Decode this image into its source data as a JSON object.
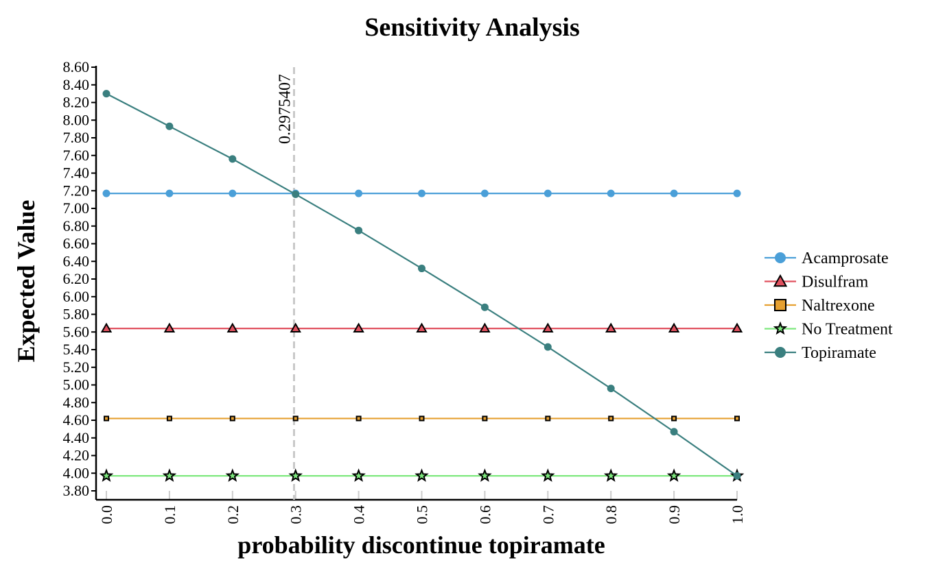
{
  "chart_data": {
    "type": "line",
    "title": "Sensitivity Analysis",
    "xlabel": "probability discontinue topiramate",
    "ylabel": "Expected Value",
    "xlim": [
      0.0,
      1.0
    ],
    "ylim": [
      3.8,
      8.6
    ],
    "x_ticks": [
      "0.0",
      "0.1",
      "0.2",
      "0.3",
      "0.4",
      "0.5",
      "0.6",
      "0.7",
      "0.8",
      "0.9",
      "1.0"
    ],
    "y_ticks": [
      "3.80",
      "4.00",
      "4.20",
      "4.40",
      "4.60",
      "4.80",
      "5.00",
      "5.20",
      "5.40",
      "5.60",
      "5.80",
      "6.00",
      "6.20",
      "6.40",
      "6.60",
      "6.80",
      "7.00",
      "7.20",
      "7.40",
      "7.60",
      "7.80",
      "8.00",
      "8.20",
      "8.40",
      "8.60"
    ],
    "x": [
      0.0,
      0.1,
      0.2,
      0.3,
      0.4,
      0.5,
      0.6,
      0.7,
      0.8,
      0.9,
      1.0
    ],
    "series": [
      {
        "name": "Acamprosate",
        "color": "#4a9fd8",
        "marker": "circle",
        "values": [
          7.17,
          7.17,
          7.17,
          7.17,
          7.17,
          7.17,
          7.17,
          7.17,
          7.17,
          7.17,
          7.17
        ]
      },
      {
        "name": "Disulfram",
        "color": "#e0505e",
        "marker": "triangle",
        "values": [
          5.64,
          5.64,
          5.64,
          5.64,
          5.64,
          5.64,
          5.64,
          5.64,
          5.64,
          5.64,
          5.64
        ]
      },
      {
        "name": "Naltrexone",
        "color": "#e6a030",
        "marker": "square",
        "values": [
          4.62,
          4.62,
          4.62,
          4.62,
          4.62,
          4.62,
          4.62,
          4.62,
          4.62,
          4.62,
          4.62
        ]
      },
      {
        "name": "No Treatment",
        "color": "#7de87d",
        "marker": "star",
        "values": [
          3.97,
          3.97,
          3.97,
          3.97,
          3.97,
          3.97,
          3.97,
          3.97,
          3.97,
          3.97,
          3.97
        ]
      },
      {
        "name": "Topiramate",
        "color": "#3a7f7f",
        "marker": "circle",
        "values": [
          8.3,
          7.93,
          7.56,
          7.16,
          6.75,
          6.32,
          5.88,
          5.43,
          4.96,
          4.47,
          3.97
        ]
      }
    ],
    "threshold": {
      "x": 0.2975407,
      "label": "0.2975407"
    },
    "legend_position": "right",
    "grid": false
  }
}
